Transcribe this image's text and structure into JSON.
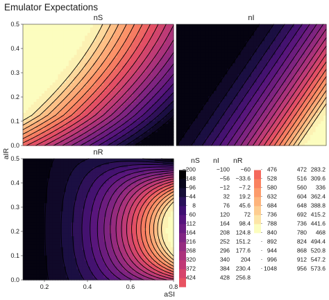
{
  "chart_data": {
    "type": "heatmap",
    "title": "Emulator Expectations",
    "xlabel": "aSI",
    "ylabel": "aIR",
    "xlim": [
      0.1,
      0.8
    ],
    "ylim": [
      0,
      0.5
    ],
    "x_ticks": [
      "0.2",
      "0.4",
      "0.6",
      "0.8"
    ],
    "y_ticks": [
      "0.0",
      "0.1",
      "0.2",
      "0.3",
      "0.4",
      "0.5"
    ],
    "panels": [
      {
        "name": "nS",
        "description_shape": "increasing toward small aSI and large aIR, highest near aSI=0.1, aIR~0.35",
        "range": [
          230,
          575
        ]
      },
      {
        "name": "nI",
        "description_shape": "near minimum at small aSI, increasing toward large aSI and small aIR",
        "range": [
          -200,
          1048
        ]
      },
      {
        "name": "nR",
        "description_shape": "increasing toward large aSI, peaked near aIR~0.2",
        "range": [
          -60,
          400
        ]
      }
    ],
    "legend": {
      "headers": [
        "nS",
        "nI",
        "nR"
      ],
      "colors": [
        "#000004",
        "#07061c",
        "#150e37",
        "#29115a",
        "#3f0f72",
        "#56147d",
        "#6a1c81",
        "#802582",
        "#952c80",
        "#ab337c",
        "#c03a76",
        "#d6456c",
        "#e85362",
        "#f4685c",
        "#fa815f",
        "#fd9b6b",
        "#feb47b",
        "#fecd90",
        "#fde5a7",
        "#fcfdbf"
      ],
      "rows": [
        [
          "−200",
          "−100",
          "−60"
        ],
        [
          "−148",
          "−56",
          "−33.6"
        ],
        [
          "−96",
          "−12",
          "−7.2"
        ],
        [
          "−44",
          "32",
          "19.2"
        ],
        [
          "8",
          "76",
          "45.6"
        ],
        [
          "60",
          "120",
          "72"
        ],
        [
          "112",
          "164",
          "98.4"
        ],
        [
          "164",
          "208",
          "124.8"
        ],
        [
          "216",
          "252",
          "151.2"
        ],
        [
          "268",
          "296",
          "177.6"
        ],
        [
          "320",
          "340",
          "204"
        ],
        [
          "372",
          "384",
          "230.4"
        ],
        [
          "424",
          "428",
          "256.8"
        ],
        [
          "476",
          "472",
          "283.2"
        ],
        [
          "528",
          "516",
          "309.6"
        ],
        [
          "580",
          "560",
          "336"
        ],
        [
          "632",
          "604",
          "362.4"
        ],
        [
          "684",
          "648",
          "388.8"
        ],
        [
          "736",
          "692",
          "415.2"
        ],
        [
          "788",
          "736",
          "441.6"
        ],
        [
          "840",
          "780",
          "468"
        ],
        [
          "892",
          "824",
          "494.4"
        ],
        [
          "944",
          "868",
          "520.8"
        ],
        [
          "996",
          "912",
          "547.2"
        ],
        [
          "1048",
          "956",
          "573.6"
        ]
      ]
    }
  }
}
